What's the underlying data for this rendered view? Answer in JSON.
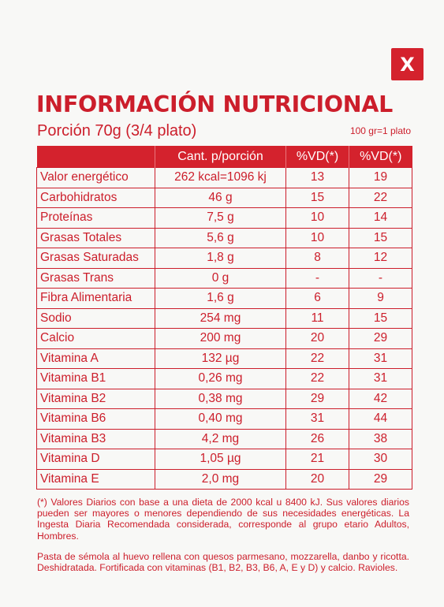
{
  "close_button": {
    "label": "X"
  },
  "title": "INFORMACIÓN NUTRICIONAL",
  "portion": "Porción 70g (3/4 plato)",
  "serving_note": "100 gr=1 plato",
  "table": {
    "headers": [
      "",
      "Cant. p/porción",
      "%VD(*)",
      "%VD(*)"
    ],
    "rows": [
      [
        "Valor energético",
        "262 kcal=1096 kj",
        "13",
        "19"
      ],
      [
        "Carbohidratos",
        "46 g",
        "15",
        "22"
      ],
      [
        "Proteínas",
        "7,5 g",
        "10",
        "14"
      ],
      [
        "Grasas Totales",
        "5,6 g",
        "10",
        "15"
      ],
      [
        "Grasas Saturadas",
        "1,8 g",
        "8",
        "12"
      ],
      [
        "Grasas Trans",
        "0 g",
        "-",
        "-"
      ],
      [
        "Fibra Alimentaria",
        "1,6 g",
        "6",
        "9"
      ],
      [
        "Sodio",
        "254 mg",
        "11",
        "15"
      ],
      [
        "Calcio",
        "200 mg",
        "20",
        "29"
      ],
      [
        "Vitamina A",
        "132 µg",
        "22",
        "31"
      ],
      [
        "Vitamina B1",
        "0,26 mg",
        "22",
        "31"
      ],
      [
        "Vitamina B2",
        "0,38 mg",
        "29",
        "42"
      ],
      [
        "Vitamina B6",
        "0,40 mg",
        "31",
        "44"
      ],
      [
        "Vitamina B3",
        "4,2 mg",
        "26",
        "38"
      ],
      [
        "Vitamina D",
        "1,05 µg",
        "21",
        "30"
      ],
      [
        "Vitamina E",
        "2,0 mg",
        "20",
        "29"
      ]
    ]
  },
  "footnote": "(*) Valores Diarios con base a una dieta de 2000 kcal u 8400 kJ.  Sus valores diarios pueden ser mayores o  menores dependiendo de sus necesidades energéticas. La Ingesta Diaria Recomendada  considerada, corresponde al grupo etario Adultos, Hombres.",
  "description": "Pasta de sémola al huevo rellena con quesos parmesano, mozzarella, danbo y ricotta. Deshidratada. Fortificada con vitaminas (B1, B2, B3, B6, A, E y D) y calcio. Ravioles.",
  "colors": {
    "brand_red": "#d4222d",
    "text_red": "#cc1e2b",
    "background": "#f8f8f6"
  }
}
